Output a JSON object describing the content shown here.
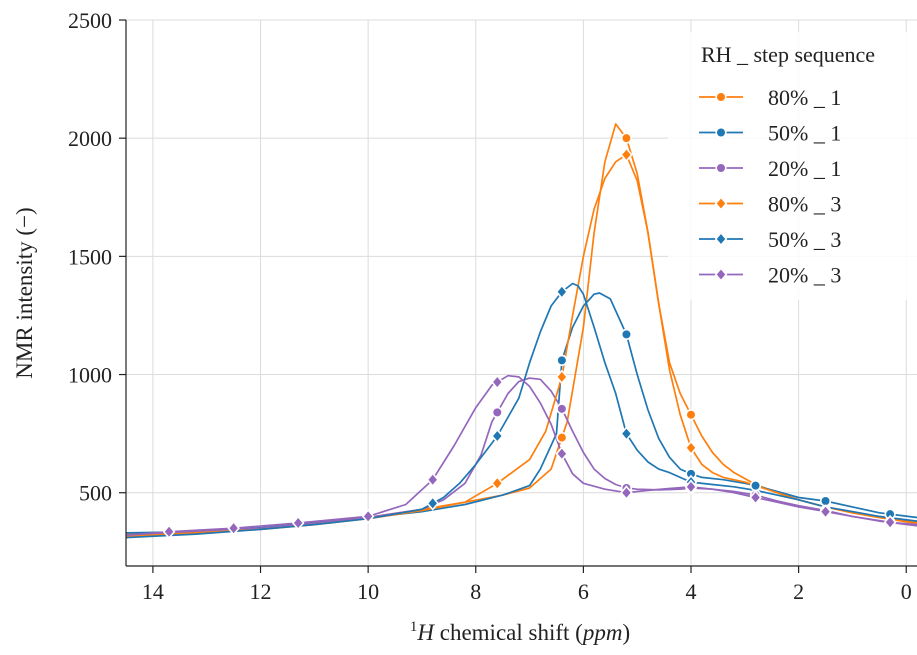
{
  "chart_data": {
    "type": "line",
    "title": "",
    "xlabel": {
      "prefix": "1",
      "italic_h": "H",
      "middle": " chemical shift (",
      "italic_unit": "ppm",
      "suffix": ")"
    },
    "ylabel": "NMR intensity (−)",
    "xlim": [
      14.5,
      -0.2
    ],
    "ylim": [
      190,
      2500
    ],
    "x_ticks": [
      14,
      12,
      10,
      8,
      6,
      4,
      2,
      0
    ],
    "y_ticks": [
      500,
      1000,
      1500,
      2000,
      2500
    ],
    "grid": true,
    "legend": {
      "title": "RH _ step sequence",
      "placement": "top-right"
    },
    "series": [
      {
        "name": "80% _ 1",
        "color": "#ff7f0e",
        "marker": "circle",
        "points": [
          [
            14.5,
            325
          ],
          [
            13.2,
            335
          ],
          [
            12,
            348
          ],
          [
            11,
            368
          ],
          [
            10,
            395
          ],
          [
            9,
            430
          ],
          [
            8.2,
            460
          ],
          [
            7.5,
            490
          ],
          [
            7,
            520
          ],
          [
            6.6,
            600
          ],
          [
            6.3,
            800
          ],
          [
            6,
            1200
          ],
          [
            5.8,
            1600
          ],
          [
            5.6,
            1900
          ],
          [
            5.4,
            2060
          ],
          [
            5.2,
            2000
          ],
          [
            5,
            1850
          ],
          [
            4.8,
            1600
          ],
          [
            4.6,
            1300
          ],
          [
            4.4,
            1050
          ],
          [
            4.2,
            920
          ],
          [
            4,
            830
          ],
          [
            3.8,
            740
          ],
          [
            3.6,
            670
          ],
          [
            3.4,
            620
          ],
          [
            3.2,
            585
          ],
          [
            3,
            560
          ],
          [
            2.8,
            535
          ],
          [
            2.4,
            500
          ],
          [
            2,
            470
          ],
          [
            1.5,
            440
          ],
          [
            1,
            415
          ],
          [
            0.5,
            395
          ],
          [
            -0.2,
            370
          ]
        ],
        "markers_x": [
          6.4,
          5.2,
          4.0
        ]
      },
      {
        "name": "50% _ 1",
        "color": "#1f77b4",
        "marker": "circle",
        "points": [
          [
            14.5,
            330
          ],
          [
            13.2,
            335
          ],
          [
            12,
            352
          ],
          [
            11,
            372
          ],
          [
            10,
            395
          ],
          [
            9,
            420
          ],
          [
            8.2,
            450
          ],
          [
            7.5,
            490
          ],
          [
            7,
            530
          ],
          [
            6.8,
            600
          ],
          [
            6.5,
            750
          ],
          [
            6.4,
            1060
          ],
          [
            6.2,
            1200
          ],
          [
            6,
            1290
          ],
          [
            5.8,
            1340
          ],
          [
            5.7,
            1345
          ],
          [
            5.5,
            1320
          ],
          [
            5.2,
            1170
          ],
          [
            5,
            1000
          ],
          [
            4.8,
            850
          ],
          [
            4.6,
            730
          ],
          [
            4.4,
            650
          ],
          [
            4.2,
            600
          ],
          [
            4,
            580
          ],
          [
            3.8,
            565
          ],
          [
            3.4,
            555
          ],
          [
            3,
            540
          ],
          [
            2.8,
            530
          ],
          [
            2.4,
            505
          ],
          [
            2,
            480
          ],
          [
            1.5,
            465
          ],
          [
            1,
            440
          ],
          [
            0.5,
            415
          ],
          [
            -0.2,
            395
          ]
        ],
        "markers_x": [
          6.4,
          5.2,
          4.0,
          2.8,
          1.5,
          0.3
        ]
      },
      {
        "name": "20% _ 1",
        "color": "#9467bd",
        "marker": "circle",
        "points": [
          [
            14.5,
            320
          ],
          [
            13.2,
            335
          ],
          [
            12,
            350
          ],
          [
            11,
            370
          ],
          [
            10,
            395
          ],
          [
            9,
            430
          ],
          [
            8.6,
            470
          ],
          [
            8.2,
            540
          ],
          [
            7.9,
            660
          ],
          [
            7.7,
            800
          ],
          [
            7.4,
            920
          ],
          [
            7.2,
            970
          ],
          [
            7,
            985
          ],
          [
            6.8,
            980
          ],
          [
            6.6,
            930
          ],
          [
            6.4,
            855
          ],
          [
            6.2,
            760
          ],
          [
            6,
            670
          ],
          [
            5.8,
            600
          ],
          [
            5.6,
            560
          ],
          [
            5.4,
            535
          ],
          [
            5.2,
            520
          ],
          [
            5,
            515
          ],
          [
            4.6,
            512
          ],
          [
            4.2,
            515
          ],
          [
            4,
            520
          ],
          [
            3.6,
            515
          ],
          [
            3.2,
            505
          ],
          [
            2.8,
            490
          ],
          [
            2.4,
            465
          ],
          [
            2,
            445
          ],
          [
            1.5,
            425
          ],
          [
            1,
            400
          ],
          [
            0.5,
            380
          ],
          [
            -0.2,
            360
          ]
        ],
        "markers_x": [
          7.6,
          6.4,
          5.2,
          4.0,
          2.8,
          1.5,
          0.3
        ]
      },
      {
        "name": "80% _ 3",
        "color": "#ff7f0e",
        "marker": "diamond",
        "points": [
          [
            14.5,
            315
          ],
          [
            13.2,
            330
          ],
          [
            12,
            345
          ],
          [
            11,
            365
          ],
          [
            10,
            390
          ],
          [
            9,
            425
          ],
          [
            8.2,
            460
          ],
          [
            7.6,
            540
          ],
          [
            7,
            640
          ],
          [
            6.7,
            760
          ],
          [
            6.4,
            990
          ],
          [
            6.2,
            1250
          ],
          [
            6,
            1500
          ],
          [
            5.8,
            1700
          ],
          [
            5.6,
            1830
          ],
          [
            5.4,
            1900
          ],
          [
            5.2,
            1930
          ],
          [
            5,
            1820
          ],
          [
            4.8,
            1600
          ],
          [
            4.6,
            1300
          ],
          [
            4.4,
            1020
          ],
          [
            4.2,
            830
          ],
          [
            4,
            690
          ],
          [
            3.8,
            620
          ],
          [
            3.6,
            585
          ],
          [
            3.4,
            565
          ],
          [
            3,
            545
          ],
          [
            2.8,
            530
          ],
          [
            2.4,
            500
          ],
          [
            2,
            470
          ],
          [
            1.5,
            440
          ],
          [
            1,
            415
          ],
          [
            0.5,
            395
          ],
          [
            -0.2,
            375
          ]
        ],
        "markers_x": [
          7.6,
          6.4,
          5.2,
          4.0
        ]
      },
      {
        "name": "50% _ 3",
        "color": "#1f77b4",
        "marker": "diamond",
        "points": [
          [
            14.5,
            310
          ],
          [
            13.2,
            325
          ],
          [
            12,
            345
          ],
          [
            11,
            365
          ],
          [
            10,
            390
          ],
          [
            9,
            430
          ],
          [
            8.6,
            480
          ],
          [
            8.3,
            540
          ],
          [
            8,
            620
          ],
          [
            7.6,
            740
          ],
          [
            7.2,
            900
          ],
          [
            7,
            1050
          ],
          [
            6.8,
            1180
          ],
          [
            6.6,
            1290
          ],
          [
            6.4,
            1350
          ],
          [
            6.2,
            1385
          ],
          [
            6.1,
            1375
          ],
          [
            6,
            1340
          ],
          [
            5.8,
            1200
          ],
          [
            5.6,
            1050
          ],
          [
            5.4,
            920
          ],
          [
            5.2,
            750
          ],
          [
            5,
            680
          ],
          [
            4.8,
            630
          ],
          [
            4.6,
            600
          ],
          [
            4.4,
            585
          ],
          [
            4.2,
            565
          ],
          [
            4,
            545
          ],
          [
            3.6,
            535
          ],
          [
            3.2,
            525
          ],
          [
            2.8,
            510
          ],
          [
            2.4,
            490
          ],
          [
            2,
            470
          ],
          [
            1.5,
            440
          ],
          [
            1,
            420
          ],
          [
            0.5,
            400
          ],
          [
            -0.2,
            380
          ]
        ],
        "markers_x": [
          8.8,
          7.6,
          6.4,
          5.2,
          4.0
        ]
      },
      {
        "name": "20% _ 3",
        "color": "#9467bd",
        "marker": "diamond",
        "points": [
          [
            14.5,
            320
          ],
          [
            13.7,
            335
          ],
          [
            12.5,
            350
          ],
          [
            11.3,
            372
          ],
          [
            10,
            400
          ],
          [
            9.3,
            450
          ],
          [
            8.8,
            555
          ],
          [
            8.4,
            700
          ],
          [
            8,
            860
          ],
          [
            7.7,
            955
          ],
          [
            7.4,
            995
          ],
          [
            7.2,
            990
          ],
          [
            7,
            950
          ],
          [
            6.8,
            880
          ],
          [
            6.6,
            790
          ],
          [
            6.4,
            665
          ],
          [
            6.2,
            580
          ],
          [
            6,
            540
          ],
          [
            5.6,
            515
          ],
          [
            5.2,
            500
          ],
          [
            4.8,
            510
          ],
          [
            4.4,
            518
          ],
          [
            4,
            525
          ],
          [
            3.6,
            515
          ],
          [
            3.2,
            500
          ],
          [
            2.8,
            480
          ],
          [
            2.4,
            460
          ],
          [
            2,
            440
          ],
          [
            1.5,
            420
          ],
          [
            1,
            400
          ],
          [
            0.3,
            375
          ],
          [
            -0.2,
            365
          ]
        ],
        "markers_x": [
          13.7,
          12.5,
          11.3,
          10.0,
          8.8,
          7.6,
          6.4,
          5.2,
          4.0,
          2.8,
          1.5,
          0.3
        ]
      }
    ]
  }
}
